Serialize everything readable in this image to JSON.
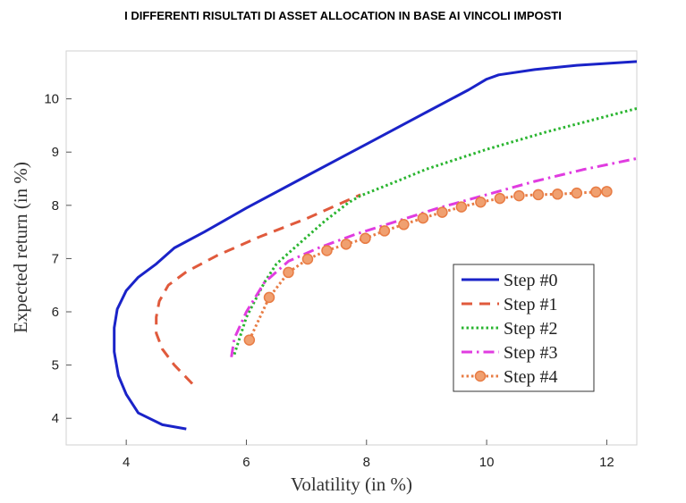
{
  "chart_data": {
    "type": "line",
    "title": "I DIFFERENTI RISULTATI DI ASSET ALLOCATION IN BASE AI VINCOLI IMPOSTI",
    "xlabel": "Volatility (in %)",
    "ylabel": "Expected return (in %)",
    "xlim": [
      3,
      12.5
    ],
    "ylim": [
      3.5,
      10.9
    ],
    "xticks": [
      "4",
      "6",
      "8",
      "10",
      "12"
    ],
    "yticks": [
      "4",
      "5",
      "6",
      "7",
      "8",
      "9",
      "10"
    ],
    "grid": false,
    "legend_position": "bottom-right",
    "series": [
      {
        "name": "Step #0",
        "color": "#1a23c8",
        "style": "solid",
        "x": [
          5.0,
          4.6,
          4.2,
          4.0,
          3.87,
          3.8,
          3.8,
          3.85,
          4.0,
          4.2,
          4.5,
          4.8,
          5.3,
          6.0,
          7.0,
          8.0,
          9.0,
          9.7,
          10.0,
          10.2,
          10.8,
          11.5,
          12.5
        ],
        "y": [
          3.8,
          3.88,
          4.1,
          4.45,
          4.8,
          5.25,
          5.7,
          6.05,
          6.4,
          6.65,
          6.9,
          7.2,
          7.5,
          7.95,
          8.55,
          9.15,
          9.75,
          10.17,
          10.37,
          10.45,
          10.55,
          10.63,
          10.7
        ]
      },
      {
        "name": "Step #1",
        "color": "#e05a3c",
        "style": "dashed",
        "x": [
          5.1,
          4.8,
          4.6,
          4.5,
          4.5,
          4.55,
          4.7,
          5.0,
          5.5,
          6.2,
          7.0,
          7.6,
          7.9
        ],
        "y": [
          4.65,
          5.0,
          5.3,
          5.6,
          5.9,
          6.2,
          6.5,
          6.75,
          7.05,
          7.4,
          7.75,
          8.05,
          8.2
        ]
      },
      {
        "name": "Step #2",
        "color": "#2ab530",
        "style": "dotted",
        "x": [
          5.8,
          6.0,
          6.3,
          6.5,
          6.9,
          7.3,
          7.7,
          7.9,
          8.5,
          9.0,
          10.0,
          11.0,
          12.5
        ],
        "y": [
          5.2,
          5.9,
          6.55,
          6.9,
          7.3,
          7.7,
          8.05,
          8.18,
          8.45,
          8.68,
          9.05,
          9.38,
          9.82
        ]
      },
      {
        "name": "Step #3",
        "color": "#e03ce0",
        "style": "dashdot",
        "x": [
          5.75,
          5.8,
          6.0,
          6.3,
          6.7,
          7.2,
          7.8,
          8.5,
          9.2,
          10.0,
          10.8,
          11.6,
          12.5
        ],
        "y": [
          5.15,
          5.5,
          6.0,
          6.55,
          6.95,
          7.2,
          7.45,
          7.7,
          7.95,
          8.2,
          8.45,
          8.67,
          8.88
        ]
      },
      {
        "name": "Step #4",
        "color": "#e87c44",
        "style": "dotted-markers",
        "x": [
          6.05,
          6.38,
          6.7,
          7.02,
          7.34,
          7.66,
          7.98,
          8.3,
          8.62,
          8.94,
          9.26,
          9.58,
          9.9,
          10.22,
          10.54,
          10.86,
          11.18,
          11.5,
          11.82,
          12.0
        ],
        "y": [
          5.47,
          6.27,
          6.74,
          6.99,
          7.15,
          7.27,
          7.38,
          7.52,
          7.64,
          7.76,
          7.87,
          7.97,
          8.06,
          8.13,
          8.18,
          8.2,
          8.21,
          8.23,
          8.25,
          8.26
        ]
      }
    ]
  }
}
